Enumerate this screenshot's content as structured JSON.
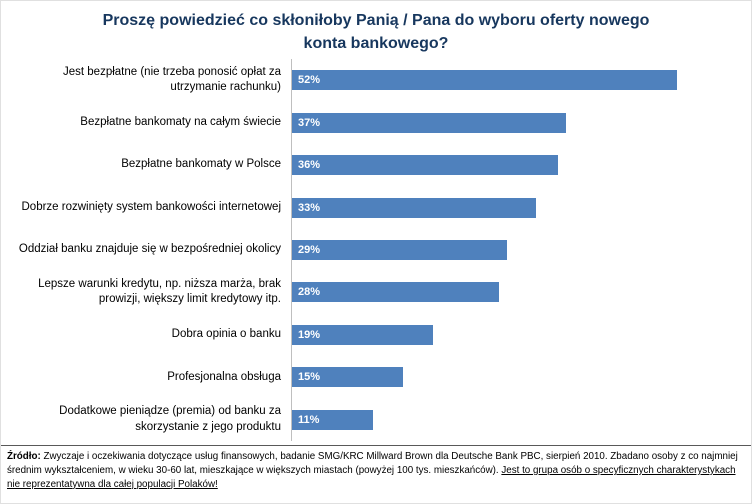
{
  "title": "Proszę powiedzieć co skłoniłoby Panią / Pana do wyboru oferty nowego konta bankowego?",
  "chart_data": {
    "type": "bar",
    "orientation": "horizontal",
    "title": "Proszę powiedzieć co skłoniłoby Panią / Pana do wyboru oferty nowego konta bankowego?",
    "categories": [
      "Jest bezpłatne (nie trzeba ponosić opłat za utrzymanie rachunku)",
      "Bezpłatne bankomaty na całym świecie",
      "Bezpłatne bankomaty w Polsce",
      "Dobrze rozwinięty system bankowości internetowej",
      "Oddział banku znajduje się w bezpośredniej okolicy",
      "Lepsze warunki kredytu, np. niższa marża, brak prowizji, większy limit kredytowy itp.",
      "Dobra opinia o banku",
      "Profesjonalna obsługa",
      "Dodatkowe pieniądze (premia) od banku za skorzystanie z jego produktu"
    ],
    "values": [
      52,
      37,
      36,
      33,
      29,
      28,
      19,
      15,
      11
    ],
    "value_suffix": "%",
    "xlabel": "",
    "ylabel": "",
    "xlim": [
      0,
      58
    ],
    "grid": false,
    "legend": false,
    "bar_color": "#4F81BD",
    "value_label_color": "#ffffff",
    "title_color": "#17375E"
  },
  "source": {
    "label": "Źródło:",
    "text": " Zwyczaje i oczekiwania dotyczące usług finansowych, badanie SMG/KRC Millward Brown dla Deutsche Bank PBC, sierpień 2010. Zbadano osoby z co najmniej średnim wykształceniem, w wieku 30-60 lat, mieszkające w większych miastach (powyżej 100 tys. mieszkańców). ",
    "underlined": "Jest to grupa osób o specyficznych charakterystykach nie reprezentatywna dla całej populacji Polaków!"
  }
}
